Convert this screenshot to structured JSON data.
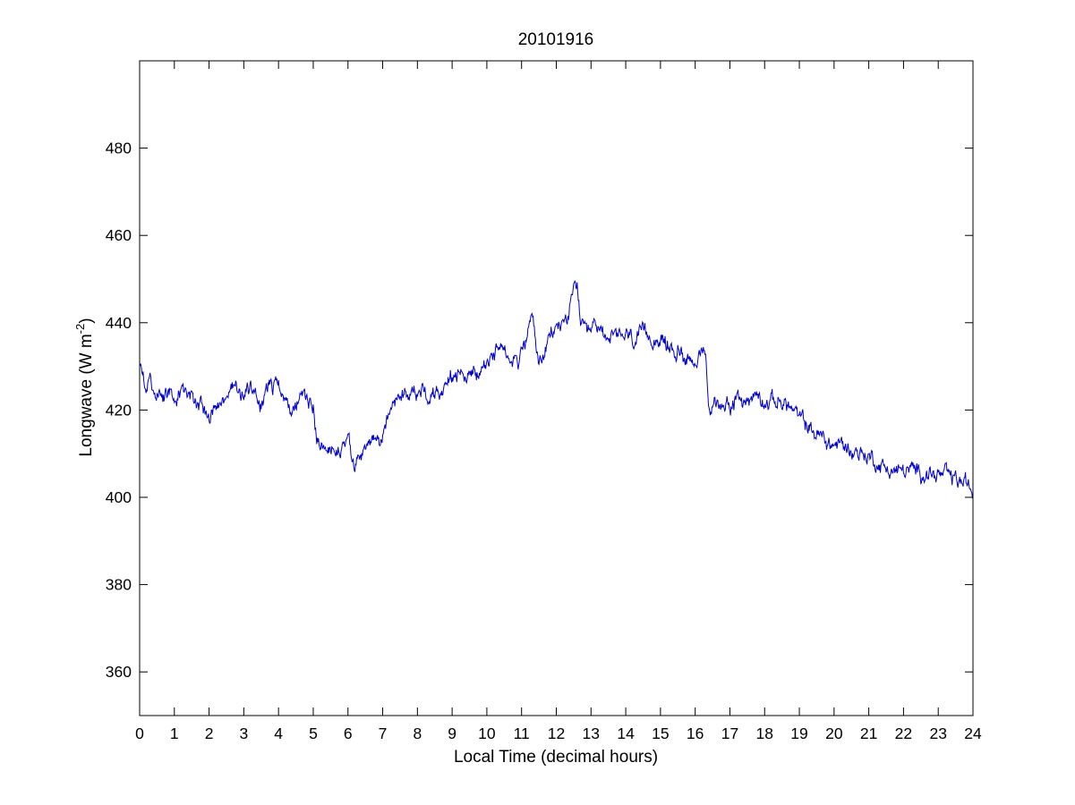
{
  "chart_data": {
    "type": "line",
    "title": "20101916",
    "xlabel": "Local Time (decimal hours)",
    "ylabel": {
      "text": "Longwave (W m",
      "superscript": "-2",
      "close": ")"
    },
    "xlim": [
      0,
      24
    ],
    "ylim": [
      350,
      500
    ],
    "xticks": [
      0,
      1,
      2,
      3,
      4,
      5,
      6,
      7,
      8,
      9,
      10,
      11,
      12,
      13,
      14,
      15,
      16,
      17,
      18,
      19,
      20,
      21,
      22,
      23,
      24
    ],
    "yticks": [
      360,
      380,
      400,
      420,
      440,
      460,
      480
    ],
    "grid": false,
    "legend": "none",
    "series": [
      {
        "color": "#0000cc",
        "noise_amplitude": 1.6,
        "x": [
          0,
          0.1,
          0.3,
          0.5,
          0.8,
          1.0,
          1.1,
          1.3,
          1.6,
          1.8,
          1.9,
          2.0,
          2.2,
          2.5,
          2.7,
          2.9,
          3.1,
          3.3,
          3.5,
          3.7,
          4.0,
          4.2,
          4.4,
          4.6,
          4.8,
          5.0,
          5.1,
          5.3,
          5.6,
          5.8,
          6.0,
          6.1,
          6.2,
          6.3,
          6.5,
          6.7,
          6.9,
          7.0,
          7.2,
          7.5,
          7.8,
          8.0,
          8.3,
          8.6,
          9.0,
          9.3,
          9.6,
          9.9,
          10.2,
          10.5,
          10.7,
          10.9,
          11.1,
          11.3,
          11.4,
          11.5,
          11.6,
          11.8,
          12.0,
          12.2,
          12.4,
          12.5,
          12.6,
          12.7,
          12.9,
          13.1,
          13.4,
          13.7,
          14.0,
          14.3,
          14.6,
          14.9,
          15.1,
          15.3,
          15.6,
          15.9,
          16.2,
          16.3,
          16.4,
          16.6,
          16.9,
          17.2,
          17.5,
          17.8,
          18.1,
          18.4,
          18.7,
          19.0,
          19.2,
          19.4,
          19.6,
          19.9,
          20.2,
          20.5,
          20.8,
          21.1,
          21.4,
          21.7,
          22.0,
          22.3,
          22.6,
          22.9,
          23.2,
          23.5,
          23.8,
          24.0
        ],
        "y": [
          429,
          428,
          426,
          424,
          424,
          421,
          423,
          423,
          422,
          421,
          418,
          418,
          420,
          423,
          426,
          424,
          425,
          423,
          421,
          425,
          425,
          423,
          421,
          422,
          423,
          421,
          414,
          413,
          411,
          411,
          414,
          409,
          407,
          409,
          412,
          414,
          411,
          415,
          420,
          423,
          424,
          425,
          423,
          425,
          428,
          428,
          428,
          430,
          432,
          435,
          433,
          432,
          435,
          442,
          436,
          430,
          432,
          436,
          439,
          440,
          443,
          447,
          449,
          440,
          436,
          439,
          438,
          436,
          437,
          436,
          437,
          437,
          435,
          434,
          433,
          432,
          432,
          432,
          420,
          421,
          422,
          422,
          422,
          424,
          422,
          422,
          421,
          418,
          417,
          415,
          414,
          412,
          412,
          411,
          410,
          409,
          407,
          406,
          406,
          406,
          406,
          405,
          405,
          404,
          403,
          401
        ]
      }
    ]
  }
}
